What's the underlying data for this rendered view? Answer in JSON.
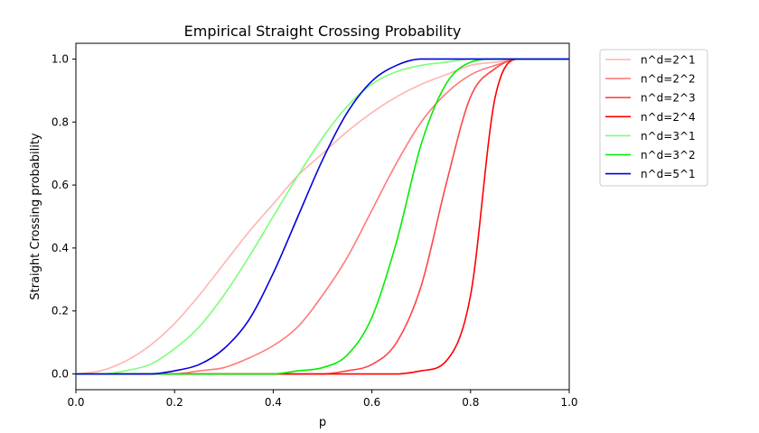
{
  "chart_data": {
    "type": "line",
    "title": "Empirical Straight Crossing Probability",
    "xlabel": "p",
    "ylabel": "Straight Crossing probability",
    "xlim": [
      0.0,
      1.0
    ],
    "ylim": [
      -0.05,
      1.05
    ],
    "xticks": [
      0.0,
      0.2,
      0.4,
      0.6,
      0.8,
      1.0
    ],
    "xtick_labels": [
      "0.0",
      "0.2",
      "0.4",
      "0.6",
      "0.8",
      "1.0"
    ],
    "yticks": [
      0.0,
      0.2,
      0.4,
      0.6,
      0.8,
      1.0
    ],
    "ytick_labels": [
      "0.0",
      "0.2",
      "0.4",
      "0.6",
      "0.8",
      "1.0"
    ],
    "grid": false,
    "legend_position": "outside-top-right",
    "x": [
      0.0,
      0.05,
      0.1,
      0.15,
      0.2,
      0.25,
      0.3,
      0.35,
      0.4,
      0.45,
      0.5,
      0.55,
      0.6,
      0.65,
      0.7,
      0.75,
      0.8,
      0.85,
      0.9,
      0.95,
      1.0
    ],
    "series": [
      {
        "name": "n^d=2^1",
        "color": "#ffb3b3",
        "values": [
          0.0,
          0.01,
          0.04,
          0.09,
          0.16,
          0.25,
          0.35,
          0.45,
          0.54,
          0.63,
          0.7,
          0.77,
          0.83,
          0.88,
          0.92,
          0.95,
          0.98,
          0.99,
          1.0,
          1.0,
          1.0
        ]
      },
      {
        "name": "n^d=2^2",
        "color": "#ff7a7a",
        "values": [
          0.0,
          0.0,
          0.0,
          0.0,
          0.0,
          0.01,
          0.02,
          0.05,
          0.09,
          0.15,
          0.25,
          0.37,
          0.52,
          0.67,
          0.8,
          0.89,
          0.95,
          0.98,
          1.0,
          1.0,
          1.0
        ]
      },
      {
        "name": "n^d=2^3",
        "color": "#ff4545",
        "values": [
          0.0,
          0.0,
          0.0,
          0.0,
          0.0,
          0.0,
          0.0,
          0.0,
          0.0,
          0.0,
          0.0,
          0.01,
          0.03,
          0.1,
          0.28,
          0.6,
          0.88,
          0.97,
          1.0,
          1.0,
          1.0
        ]
      },
      {
        "name": "n^d=2^4",
        "color": "#ff0000",
        "values": [
          0.0,
          0.0,
          0.0,
          0.0,
          0.0,
          0.0,
          0.0,
          0.0,
          0.0,
          0.0,
          0.0,
          0.0,
          0.0,
          0.0,
          0.01,
          0.04,
          0.25,
          0.88,
          1.0,
          1.0,
          1.0
        ]
      },
      {
        "name": "n^d=3^1",
        "color": "#7aff7a",
        "values": [
          0.0,
          0.0,
          0.01,
          0.03,
          0.08,
          0.15,
          0.25,
          0.37,
          0.5,
          0.63,
          0.75,
          0.85,
          0.92,
          0.96,
          0.98,
          0.99,
          1.0,
          1.0,
          1.0,
          1.0,
          1.0
        ]
      },
      {
        "name": "n^d=3^2",
        "color": "#00ee00",
        "values": [
          0.0,
          0.0,
          0.0,
          0.0,
          0.0,
          0.0,
          0.0,
          0.0,
          0.0,
          0.01,
          0.02,
          0.06,
          0.18,
          0.42,
          0.73,
          0.92,
          0.99,
          1.0,
          1.0,
          1.0,
          1.0
        ]
      },
      {
        "name": "n^d=5^1",
        "color": "#0000dd",
        "values": [
          0.0,
          0.0,
          0.0,
          0.0,
          0.01,
          0.03,
          0.08,
          0.17,
          0.32,
          0.5,
          0.68,
          0.83,
          0.93,
          0.98,
          1.0,
          1.0,
          1.0,
          1.0,
          1.0,
          1.0,
          1.0
        ]
      }
    ]
  }
}
